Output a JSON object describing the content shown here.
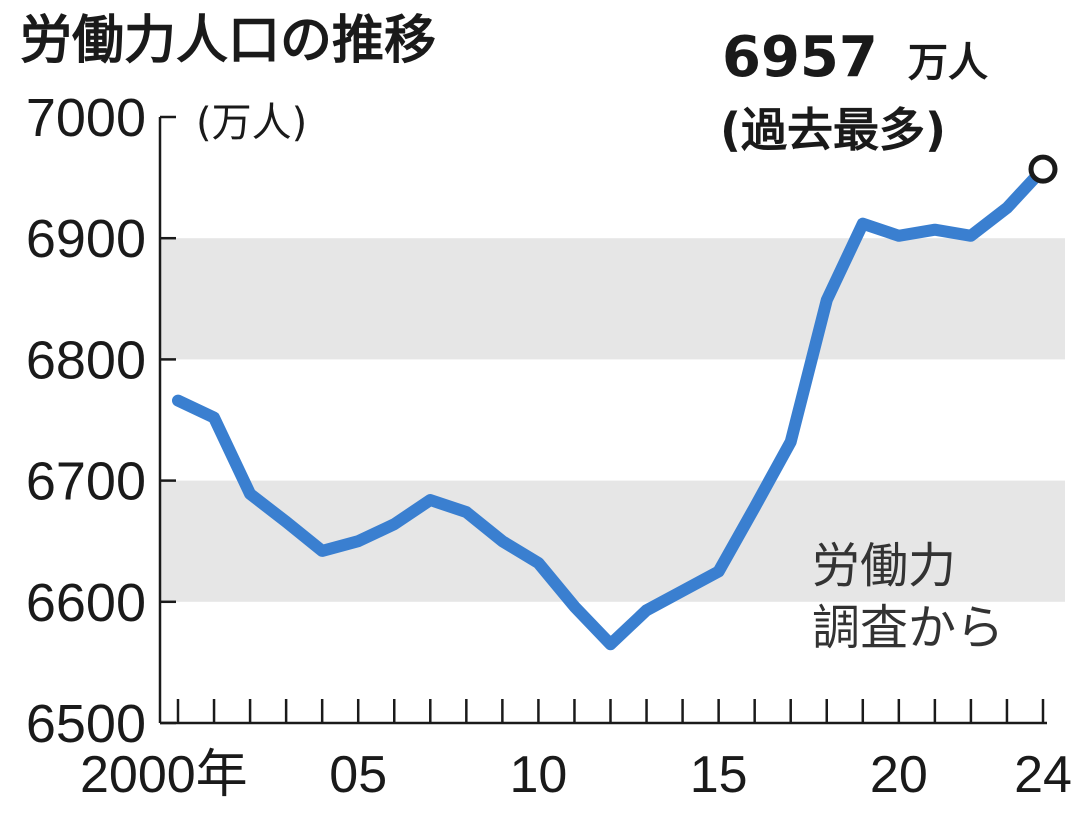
{
  "chart_data": {
    "type": "line",
    "title": "労働力人口の推移",
    "ylabel": "(万人)",
    "ylim": [
      6500,
      7000
    ],
    "yticks": [
      7000,
      6900,
      6800,
      6700,
      6600,
      6500
    ],
    "ytick_labels": [
      "7000",
      "6900",
      "6800",
      "6700",
      "6600",
      "6500"
    ],
    "xlim": [
      2000,
      2024
    ],
    "xtick_labels": [
      {
        "x": 2000,
        "label": "2000年"
      },
      {
        "x": 2005,
        "label": "05"
      },
      {
        "x": 2010,
        "label": "10"
      },
      {
        "x": 2015,
        "label": "15"
      },
      {
        "x": 2020,
        "label": "20"
      },
      {
        "x": 2024,
        "label": "24"
      }
    ],
    "series": [
      {
        "color": "#3a7fd0",
        "x": [
          2000,
          2001,
          2002,
          2003,
          2004,
          2005,
          2006,
          2007,
          2008,
          2009,
          2010,
          2011,
          2012,
          2013,
          2014,
          2015,
          2016,
          2017,
          2018,
          2019,
          2020,
          2021,
          2022,
          2023,
          2024
        ],
        "values": [
          6766,
          6752,
          6689,
          6666,
          6642,
          6650,
          6664,
          6684,
          6674,
          6650,
          6632,
          6596,
          6565,
          6593,
          6609,
          6625,
          6678,
          6732,
          6849,
          6912,
          6902,
          6907,
          6902,
          6925,
          6957
        ]
      }
    ],
    "bands": [
      [
        6800,
        6900
      ],
      [
        6600,
        6700
      ]
    ],
    "band_color": "#e6e6e6",
    "annotations": {
      "callout_value": "6957",
      "callout_unit": "万人",
      "callout_note": "(過去最多)",
      "source_line1": "労働力",
      "source_line2": "調査から"
    }
  }
}
